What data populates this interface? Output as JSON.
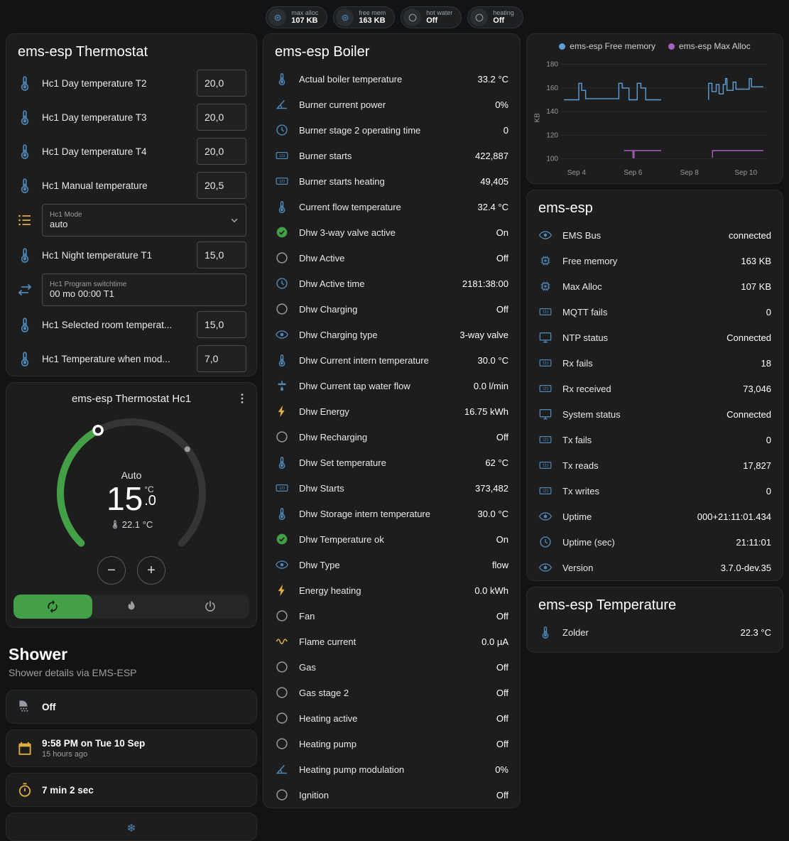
{
  "colors": {
    "accent_green": "#43a047",
    "legend_blue": "#5d9fd6",
    "legend_purple": "#aa5fc0",
    "icon_blue": "#4f87b8",
    "icon_amber": "#dfae3e"
  },
  "top_chips": [
    {
      "icon": "chip",
      "icon_color": "blue",
      "label": "max alloc",
      "value": "107 KB"
    },
    {
      "icon": "chip",
      "icon_color": "blue",
      "label": "free mem",
      "value": "163 KB"
    },
    {
      "icon": "circle",
      "icon_color": "gray",
      "label": "hot water",
      "value": "Off"
    },
    {
      "icon": "circle",
      "icon_color": "gray",
      "label": "heating",
      "value": "Off"
    }
  ],
  "thermostat_card": {
    "title": "ems-esp Thermostat",
    "rows": [
      {
        "icon": "thermometer-water",
        "color": "blue",
        "label": "Hc1 Day temperature T2",
        "control": "number",
        "value": "20,0"
      },
      {
        "icon": "thermometer-water",
        "color": "blue",
        "label": "Hc1 Day temperature T3",
        "control": "number",
        "value": "20,0"
      },
      {
        "icon": "thermometer-water",
        "color": "blue",
        "label": "Hc1 Day temperature T4",
        "control": "number",
        "value": "20,0"
      },
      {
        "icon": "thermometer-water",
        "color": "blue",
        "label": "Hc1 Manual temperature",
        "control": "number",
        "value": "20,5"
      },
      {
        "icon": "list",
        "color": "amber",
        "label": "Hc1 Mode",
        "control": "select",
        "value": "auto"
      },
      {
        "icon": "thermometer-water",
        "color": "blue",
        "label": "Hc1 Night temperature T1",
        "control": "number",
        "value": "15,0"
      },
      {
        "icon": "swap",
        "color": "blue",
        "label": "Hc1 Program switchtime",
        "control": "textfield",
        "value": "00 mo 00:00 T1"
      },
      {
        "icon": "thermometer-water",
        "color": "blue",
        "label": "Hc1 Selected room temperat...",
        "control": "number",
        "value": "15,0"
      },
      {
        "icon": "thermometer-water",
        "color": "blue",
        "label": "Hc1 Temperature when mod...",
        "control": "number",
        "value": "7,0"
      }
    ]
  },
  "dial_card": {
    "title": "ems-esp Thermostat Hc1",
    "mode_label": "Auto",
    "target_temp_int": "15",
    "target_temp_frac": ".0",
    "unit": "°C",
    "current_temp": "22.1 °C",
    "decrease_label": "−",
    "increase_label": "+",
    "modes": [
      {
        "icon": "autorenew",
        "name": "auto",
        "active": true
      },
      {
        "icon": "flame",
        "name": "heat",
        "active": false
      },
      {
        "icon": "power",
        "name": "off",
        "active": false
      }
    ]
  },
  "shower_section": {
    "title": "Shower",
    "subtitle": "Shower details via EMS-ESP",
    "cards": [
      {
        "icon": "shower",
        "color": "gray",
        "title": "Off",
        "subtitle": ""
      },
      {
        "icon": "calendar",
        "color": "amber",
        "title": "9:58 PM on Tue 10 Sep",
        "subtitle": "15 hours ago"
      },
      {
        "icon": "timer",
        "color": "amber",
        "title": "7 min 2 sec",
        "subtitle": ""
      }
    ]
  },
  "partial_card": {
    "icon": "snowflake",
    "color": "blue"
  },
  "boiler_card": {
    "title": "ems-esp Boiler",
    "rows": [
      {
        "icon": "thermometer",
        "color": "blue",
        "label": "Actual boiler temperature",
        "value": "33.2 °C"
      },
      {
        "icon": "angle",
        "color": "blue",
        "label": "Burner current power",
        "value": "0%"
      },
      {
        "icon": "clock",
        "color": "blue",
        "label": "Burner stage 2 operating time",
        "value": "0"
      },
      {
        "icon": "counter",
        "color": "blue",
        "label": "Burner starts",
        "value": "422,887"
      },
      {
        "icon": "counter",
        "color": "blue",
        "label": "Burner starts heating",
        "value": "49,405"
      },
      {
        "icon": "thermometer",
        "color": "blue",
        "label": "Current flow temperature",
        "value": "32.4 °C"
      },
      {
        "icon": "check-circle",
        "color": "green",
        "label": "Dhw 3-way valve active",
        "value": "On"
      },
      {
        "icon": "circle",
        "color": "gray",
        "label": "Dhw Active",
        "value": "Off"
      },
      {
        "icon": "clock",
        "color": "blue",
        "label": "Dhw Active time",
        "value": "2181:38:00"
      },
      {
        "icon": "circle",
        "color": "gray",
        "label": "Dhw Charging",
        "value": "Off"
      },
      {
        "icon": "eye",
        "color": "blue",
        "label": "Dhw Charging type",
        "value": "3-way valve"
      },
      {
        "icon": "thermometer",
        "color": "blue",
        "label": "Dhw Current intern temperature",
        "value": "30.0 °C"
      },
      {
        "icon": "pump",
        "color": "blue",
        "label": "Dhw Current tap water flow",
        "value": "0.0 l/min"
      },
      {
        "icon": "flash",
        "color": "amber",
        "label": "Dhw Energy",
        "value": "16.75 kWh"
      },
      {
        "icon": "circle",
        "color": "gray",
        "label": "Dhw Recharging",
        "value": "Off"
      },
      {
        "icon": "thermometer",
        "color": "blue",
        "label": "Dhw Set temperature",
        "value": "62 °C"
      },
      {
        "icon": "counter",
        "color": "blue",
        "label": "Dhw Starts",
        "value": "373,482"
      },
      {
        "icon": "thermometer",
        "color": "blue",
        "label": "Dhw Storage intern temperature",
        "value": "30.0 °C"
      },
      {
        "icon": "check-circle",
        "color": "green",
        "label": "Dhw Temperature ok",
        "value": "On"
      },
      {
        "icon": "eye",
        "color": "blue",
        "label": "Dhw Type",
        "value": "flow"
      },
      {
        "icon": "flash",
        "color": "amber",
        "label": "Energy heating",
        "value": "0.0 kWh"
      },
      {
        "icon": "circle",
        "color": "gray",
        "label": "Fan",
        "value": "Off"
      },
      {
        "icon": "current-ac",
        "color": "amber",
        "label": "Flame current",
        "value": "0.0 µA"
      },
      {
        "icon": "circle",
        "color": "gray",
        "label": "Gas",
        "value": "Off"
      },
      {
        "icon": "circle",
        "color": "gray",
        "label": "Gas stage 2",
        "value": "Off"
      },
      {
        "icon": "circle",
        "color": "gray",
        "label": "Heating active",
        "value": "Off"
      },
      {
        "icon": "circle",
        "color": "gray",
        "label": "Heating pump",
        "value": "Off"
      },
      {
        "icon": "angle",
        "color": "blue",
        "label": "Heating pump modulation",
        "value": "0%"
      },
      {
        "icon": "circle",
        "color": "gray",
        "label": "Ignition",
        "value": "Off"
      }
    ]
  },
  "chart_data": {
    "type": "line",
    "title": "",
    "ylabel": "KB",
    "legend": [
      {
        "label": "ems-esp Free memory",
        "color": "#5d9fd6"
      },
      {
        "label": "ems-esp Max Alloc",
        "color": "#aa5fc0"
      }
    ],
    "xlim": [
      3.45,
      10.75
    ],
    "ylim": [
      95,
      184
    ],
    "yticks": [
      100,
      120,
      140,
      160,
      180
    ],
    "xticks": [
      {
        "x": 4,
        "label": "Sep 4"
      },
      {
        "x": 6,
        "label": "Sep 6"
      },
      {
        "x": 8,
        "label": "Sep 8"
      },
      {
        "x": 10,
        "label": "Sep 10"
      }
    ],
    "grid": "horizontal",
    "legend_position": "top",
    "series": [
      {
        "name": "ems-esp Free memory",
        "color": "#5d9fd6",
        "unit": "KB",
        "points": [
          [
            3.55,
            150
          ],
          [
            4.08,
            150
          ],
          [
            4.08,
            164
          ],
          [
            4.18,
            164
          ],
          [
            4.18,
            158
          ],
          [
            4.32,
            158
          ],
          [
            4.32,
            151
          ],
          [
            5.5,
            151
          ],
          [
            5.5,
            164
          ],
          [
            5.62,
            164
          ],
          [
            5.62,
            160
          ],
          [
            5.86,
            160
          ],
          [
            5.86,
            150
          ],
          [
            6.15,
            150
          ],
          [
            6.15,
            164
          ],
          [
            6.28,
            164
          ],
          [
            6.28,
            160
          ],
          [
            6.45,
            160
          ],
          [
            6.45,
            150
          ],
          [
            7.0,
            150
          ],
          null,
          [
            8.68,
            150
          ],
          [
            8.68,
            164
          ],
          [
            8.8,
            164
          ],
          [
            8.8,
            157
          ],
          [
            8.95,
            157
          ],
          [
            8.95,
            163
          ],
          [
            9.05,
            163
          ],
          [
            9.05,
            155
          ],
          [
            9.2,
            155
          ],
          [
            9.2,
            163
          ],
          [
            9.28,
            163
          ],
          [
            9.28,
            168
          ],
          [
            9.33,
            168
          ],
          [
            9.33,
            158
          ],
          [
            9.55,
            158
          ],
          [
            9.55,
            165
          ],
          [
            9.65,
            165
          ],
          [
            9.65,
            159
          ],
          [
            10.12,
            159
          ],
          [
            10.12,
            168
          ],
          [
            10.2,
            168
          ],
          [
            10.2,
            161
          ],
          [
            10.62,
            161
          ]
        ]
      },
      {
        "name": "ems-esp Max Alloc",
        "color": "#aa5fc0",
        "unit": "KB",
        "points": [
          [
            5.68,
            107
          ],
          [
            6.0,
            107
          ],
          [
            6.0,
            101
          ],
          [
            6.04,
            101
          ],
          [
            6.04,
            107
          ],
          [
            7.0,
            107
          ],
          null,
          [
            8.82,
            101
          ],
          [
            8.82,
            107
          ],
          [
            10.62,
            107
          ]
        ]
      }
    ]
  },
  "esp_card": {
    "title": "ems-esp",
    "rows": [
      {
        "icon": "eye",
        "color": "blue",
        "label": "EMS Bus",
        "value": "connected"
      },
      {
        "icon": "chip",
        "color": "blue",
        "label": "Free memory",
        "value": "163 KB"
      },
      {
        "icon": "chip",
        "color": "blue",
        "label": "Max Alloc",
        "value": "107 KB"
      },
      {
        "icon": "counter",
        "color": "blue",
        "label": "MQTT fails",
        "value": "0"
      },
      {
        "icon": "monitor",
        "color": "blue",
        "label": "NTP status",
        "value": "Connected"
      },
      {
        "icon": "counter",
        "color": "blue",
        "label": "Rx fails",
        "value": "18"
      },
      {
        "icon": "counter",
        "color": "blue",
        "label": "Rx received",
        "value": "73,046"
      },
      {
        "icon": "monitor",
        "color": "blue",
        "label": "System status",
        "value": "Connected"
      },
      {
        "icon": "counter",
        "color": "blue",
        "label": "Tx fails",
        "value": "0"
      },
      {
        "icon": "counter",
        "color": "blue",
        "label": "Tx reads",
        "value": "17,827"
      },
      {
        "icon": "counter",
        "color": "blue",
        "label": "Tx writes",
        "value": "0"
      },
      {
        "icon": "eye",
        "color": "blue",
        "label": "Uptime",
        "value": "000+21:11:01.434"
      },
      {
        "icon": "clock",
        "color": "blue",
        "label": "Uptime (sec)",
        "value": "21:11:01"
      },
      {
        "icon": "eye",
        "color": "blue",
        "label": "Version",
        "value": "3.7.0-dev.35"
      }
    ]
  },
  "temperature_card": {
    "title": "ems-esp Temperature",
    "rows": [
      {
        "icon": "thermometer",
        "color": "blue",
        "label": "Zolder",
        "value": "22.3 °C"
      }
    ]
  }
}
